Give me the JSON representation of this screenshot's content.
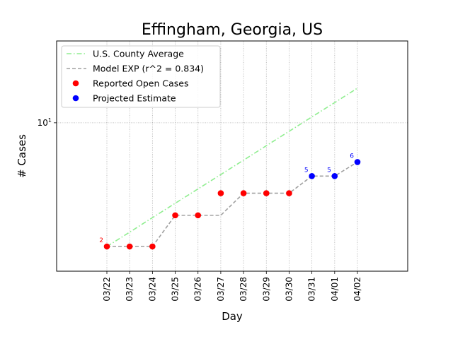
{
  "chart_data": {
    "type": "line",
    "title": "Effingham, Georgia, US",
    "xlabel": "Day",
    "ylabel": "# Cases",
    "yscale": "log",
    "ylim": [
      1.45,
      29
    ],
    "categories": [
      "03/22",
      "03/23",
      "03/24",
      "03/25",
      "03/26",
      "03/27",
      "03/28",
      "03/29",
      "03/30",
      "03/31",
      "04/01",
      "04/02"
    ],
    "yticks": [
      {
        "value": 10,
        "label": "10^1"
      }
    ],
    "grid": true,
    "legend_position": "upper-left",
    "series": [
      {
        "name": "U.S. County Average",
        "style": "dash-dot",
        "color": "#90ee90",
        "values": [
          2,
          2.41,
          2.91,
          3.51,
          4.23,
          5.1,
          6.15,
          7.42,
          8.95,
          10.8,
          13.0,
          15.7
        ]
      },
      {
        "name": "Model EXP (r^2 = 0.834)",
        "style": "dashed",
        "color": "#a0a0a0",
        "values": [
          2,
          2,
          2,
          3,
          3,
          3,
          4,
          4,
          4,
          5,
          5,
          6
        ],
        "step": true
      },
      {
        "name": "Reported Open Cases",
        "style": "markers",
        "color": "#ff0000",
        "values": [
          2,
          2,
          2,
          3,
          3,
          4,
          4,
          4,
          4,
          null,
          null,
          null
        ]
      },
      {
        "name": "Projected Estimate",
        "style": "markers",
        "color": "#0000ff",
        "values": [
          null,
          null,
          null,
          null,
          null,
          null,
          null,
          null,
          null,
          5,
          5,
          6
        ]
      }
    ],
    "annotations": [
      {
        "category": "03/22",
        "value": 2,
        "text": "2",
        "color": "#ff0000"
      },
      {
        "category": "03/31",
        "value": 5,
        "text": "5",
        "color": "#0000ff"
      },
      {
        "category": "04/01",
        "value": 5,
        "text": "5",
        "color": "#0000ff"
      },
      {
        "category": "04/02",
        "value": 6,
        "text": "6",
        "color": "#0000ff"
      }
    ]
  }
}
